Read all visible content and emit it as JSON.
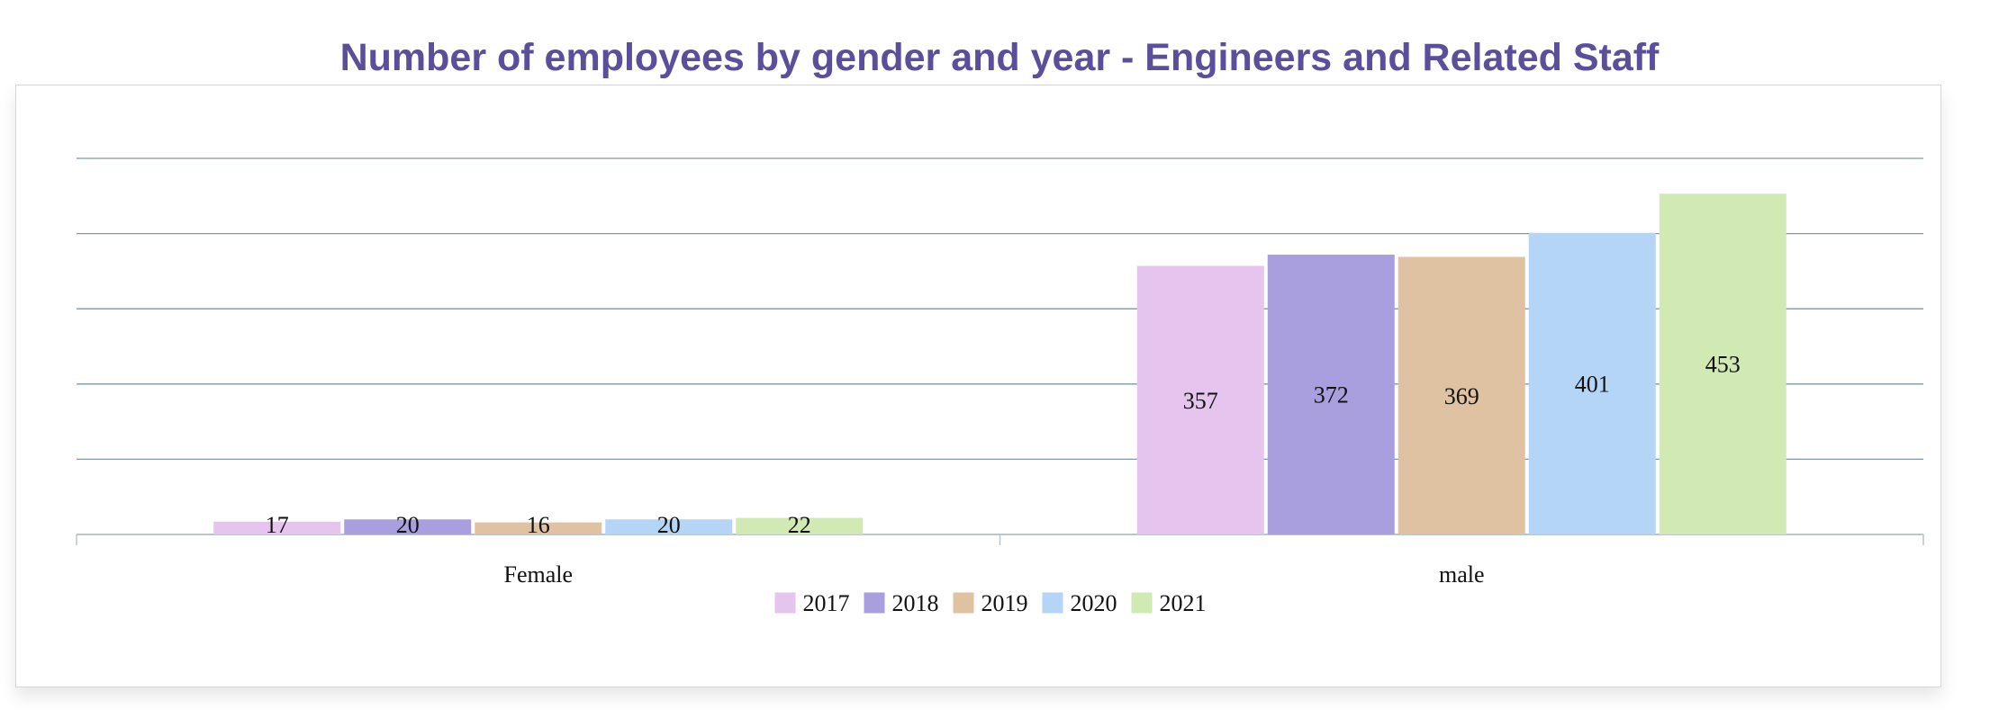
{
  "chart_data": {
    "type": "bar",
    "title": "Number of employees by gender and year - Engineers and Related Staff",
    "xlabel": "",
    "ylabel": "",
    "categories": [
      "Female",
      "male"
    ],
    "series": [
      {
        "name": "2017",
        "values": [
          17,
          357
        ],
        "color": "#e5c4ee"
      },
      {
        "name": "2018",
        "values": [
          20,
          372
        ],
        "color": "#a99fde"
      },
      {
        "name": "2019",
        "values": [
          16,
          369
        ],
        "color": "#dfc2a1"
      },
      {
        "name": "2020",
        "values": [
          20,
          401
        ],
        "color": "#b4d5f5"
      },
      {
        "name": "2021",
        "values": [
          22,
          453
        ],
        "color": "#d1e9b3"
      }
    ],
    "ylim": [
      0,
      500
    ],
    "y_gridlines": [
      0,
      100,
      200,
      300,
      400,
      500
    ],
    "y_tick_labels_visible": false,
    "grid": true,
    "legend": "bottom-center",
    "data_labels": true
  },
  "colors": {
    "title": "#5b4f9c",
    "gridline": "#7f96a7",
    "axis": "#b9c6d0",
    "text": "#111111"
  }
}
